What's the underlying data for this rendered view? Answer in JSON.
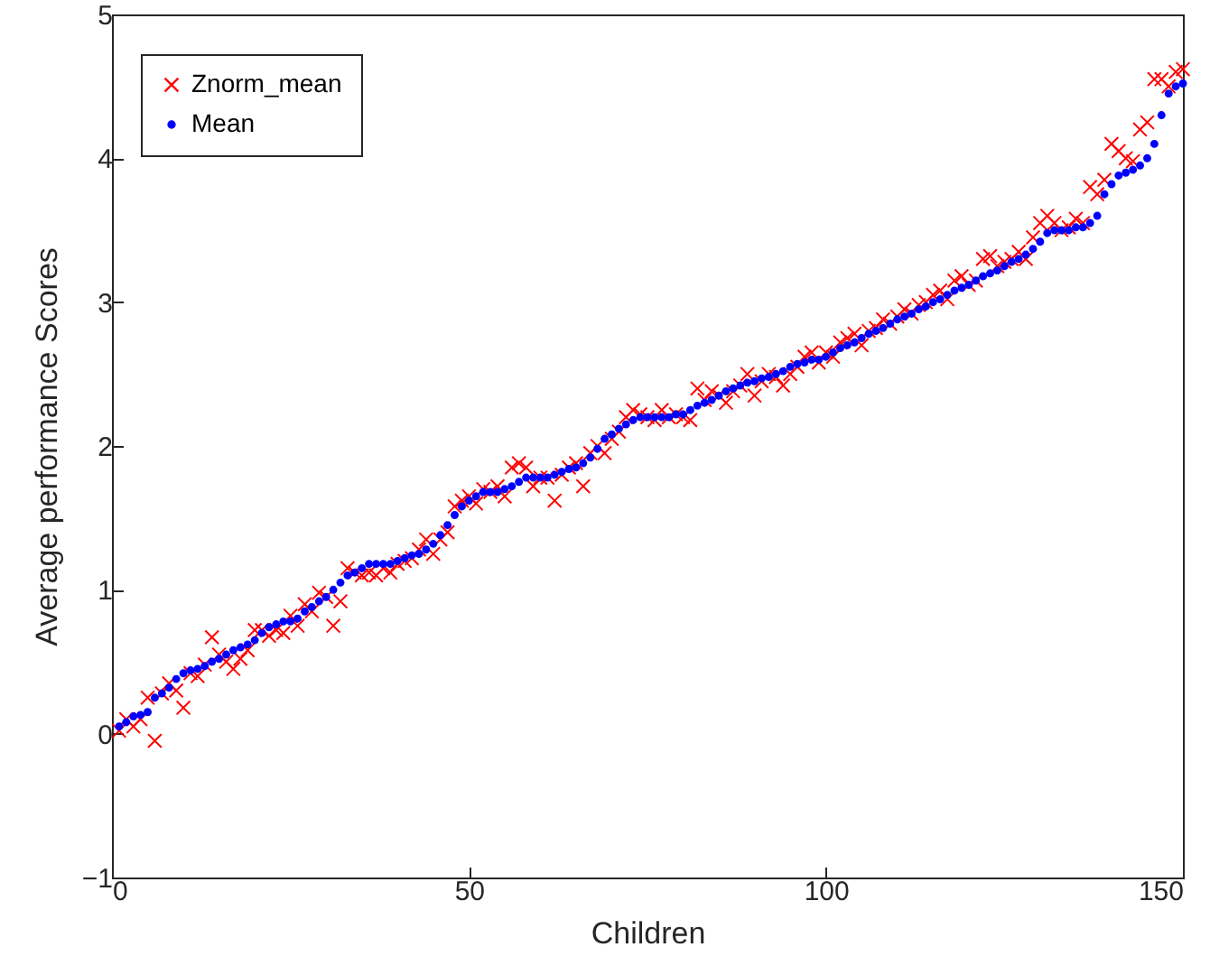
{
  "chart_data": {
    "type": "scatter",
    "xlabel": "Children",
    "ylabel": "Average performance Scores",
    "xlim": [
      0,
      150
    ],
    "xticks": [
      0,
      50,
      100,
      150
    ],
    "ylim": [
      -1,
      5
    ],
    "yticks": [
      -1,
      0,
      1,
      2,
      3,
      4,
      5
    ],
    "grid": false,
    "legend": "top left",
    "x": [
      1,
      2,
      3,
      4,
      5,
      6,
      7,
      8,
      9,
      10,
      11,
      12,
      13,
      14,
      15,
      16,
      17,
      18,
      19,
      20,
      21,
      22,
      23,
      24,
      25,
      26,
      27,
      28,
      29,
      30,
      31,
      32,
      33,
      34,
      35,
      36,
      37,
      38,
      39,
      40,
      41,
      42,
      43,
      44,
      45,
      46,
      47,
      48,
      49,
      50,
      51,
      52,
      53,
      54,
      55,
      56,
      57,
      58,
      59,
      60,
      61,
      62,
      63,
      64,
      65,
      66,
      67,
      68,
      69,
      70,
      71,
      72,
      73,
      74,
      75,
      76,
      77,
      78,
      79,
      80,
      81,
      82,
      83,
      84,
      85,
      86,
      87,
      88,
      89,
      90,
      91,
      92,
      93,
      94,
      95,
      96,
      97,
      98,
      99,
      100,
      101,
      102,
      103,
      104,
      105,
      106,
      107,
      108,
      109,
      110,
      111,
      112,
      113,
      114,
      115,
      116,
      117,
      118,
      119,
      120,
      121,
      122,
      123,
      124,
      125,
      126,
      127,
      128,
      129,
      130,
      131,
      132,
      133,
      134,
      135,
      136,
      137,
      138,
      139,
      140,
      141,
      142,
      143,
      144,
      145,
      146,
      147,
      148,
      149,
      150
    ],
    "series": [
      {
        "name": "Znorm_mean",
        "color": "#ff0000",
        "marker": "cross",
        "values": [
          0.02,
          0.1,
          0.05,
          0.1,
          0.25,
          -0.05,
          0.28,
          0.35,
          0.3,
          0.18,
          0.42,
          0.4,
          0.48,
          0.67,
          0.55,
          0.5,
          0.45,
          0.52,
          0.58,
          0.72,
          0.72,
          0.68,
          0.72,
          0.7,
          0.82,
          0.75,
          0.9,
          0.85,
          0.98,
          0.95,
          0.75,
          0.92,
          1.15,
          1.12,
          1.1,
          1.12,
          1.1,
          1.15,
          1.12,
          1.18,
          1.2,
          1.22,
          1.28,
          1.35,
          1.25,
          1.35,
          1.4,
          1.58,
          1.62,
          1.65,
          1.6,
          1.7,
          1.68,
          1.72,
          1.65,
          1.85,
          1.88,
          1.85,
          1.72,
          1.78,
          1.78,
          1.62,
          1.8,
          1.85,
          1.88,
          1.72,
          1.95,
          2.0,
          1.95,
          2.05,
          2.1,
          2.2,
          2.25,
          2.22,
          2.2,
          2.18,
          2.25,
          2.2,
          2.22,
          2.2,
          2.18,
          2.4,
          2.32,
          2.38,
          2.35,
          2.3,
          2.38,
          2.42,
          2.5,
          2.35,
          2.45,
          2.5,
          2.48,
          2.42,
          2.5,
          2.55,
          2.62,
          2.65,
          2.58,
          2.65,
          2.62,
          2.72,
          2.75,
          2.78,
          2.7,
          2.8,
          2.82,
          2.88,
          2.85,
          2.9,
          2.95,
          2.92,
          2.98,
          3.0,
          3.05,
          3.08,
          3.02,
          3.15,
          3.18,
          3.12,
          3.15,
          3.3,
          3.32,
          3.25,
          3.28,
          3.3,
          3.35,
          3.3,
          3.45,
          3.55,
          3.6,
          3.55,
          3.5,
          3.52,
          3.58,
          3.55,
          3.8,
          3.75,
          3.85,
          4.1,
          4.05,
          4.0,
          3.98,
          4.2,
          4.25,
          4.55,
          4.55,
          4.5,
          4.6,
          4.62
        ]
      },
      {
        "name": "Mean",
        "color": "#0000ff",
        "marker": "circle",
        "values": [
          0.05,
          0.08,
          0.12,
          0.13,
          0.15,
          0.25,
          0.28,
          0.32,
          0.38,
          0.42,
          0.44,
          0.45,
          0.47,
          0.5,
          0.52,
          0.55,
          0.58,
          0.6,
          0.62,
          0.65,
          0.7,
          0.74,
          0.76,
          0.78,
          0.78,
          0.8,
          0.85,
          0.88,
          0.92,
          0.95,
          1.0,
          1.05,
          1.1,
          1.12,
          1.15,
          1.18,
          1.18,
          1.18,
          1.18,
          1.2,
          1.22,
          1.24,
          1.25,
          1.28,
          1.32,
          1.38,
          1.45,
          1.52,
          1.58,
          1.62,
          1.65,
          1.68,
          1.68,
          1.68,
          1.7,
          1.72,
          1.75,
          1.78,
          1.78,
          1.78,
          1.78,
          1.8,
          1.82,
          1.84,
          1.85,
          1.88,
          1.92,
          1.98,
          2.05,
          2.08,
          2.12,
          2.15,
          2.18,
          2.2,
          2.2,
          2.2,
          2.2,
          2.2,
          2.22,
          2.22,
          2.25,
          2.28,
          2.3,
          2.32,
          2.35,
          2.38,
          2.4,
          2.42,
          2.44,
          2.45,
          2.47,
          2.48,
          2.5,
          2.52,
          2.55,
          2.57,
          2.58,
          2.6,
          2.6,
          2.62,
          2.65,
          2.68,
          2.7,
          2.72,
          2.75,
          2.78,
          2.8,
          2.82,
          2.85,
          2.88,
          2.9,
          2.92,
          2.95,
          2.97,
          3.0,
          3.02,
          3.05,
          3.08,
          3.1,
          3.12,
          3.15,
          3.18,
          3.2,
          3.22,
          3.25,
          3.28,
          3.3,
          3.33,
          3.37,
          3.42,
          3.48,
          3.5,
          3.5,
          3.5,
          3.52,
          3.52,
          3.55,
          3.6,
          3.75,
          3.82,
          3.88,
          3.9,
          3.92,
          3.95,
          4.0,
          4.1,
          4.3,
          4.45,
          4.5,
          4.52
        ]
      }
    ]
  }
}
